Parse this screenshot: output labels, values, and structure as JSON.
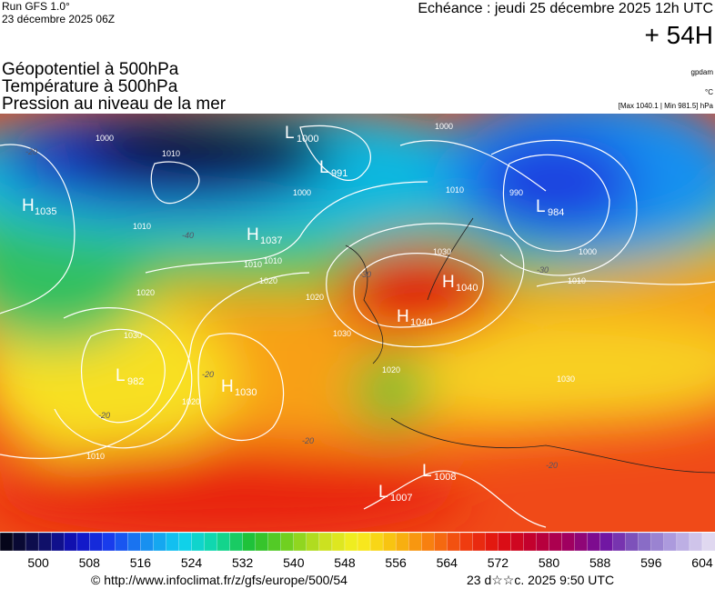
{
  "header": {
    "run": "Run GFS 1.0°",
    "run_date": "23 décembre 2025 06Z",
    "valid": "Echéance : jeudi 25 décembre 2025 12h UTC",
    "lead": "+ 54H",
    "fields": [
      "Géopotentiel à 500hPa",
      "Température à 500hPa",
      "Pression au niveau de la mer"
    ],
    "units": [
      "gpdam",
      "°C",
      "[Max 1040.1 | Min 981.5] hPa"
    ]
  },
  "centers": [
    {
      "letter": "H",
      "value": 1035
    },
    {
      "letter": "L",
      "value": 1000
    },
    {
      "letter": "L",
      "value": 991
    },
    {
      "letter": "H",
      "value": 1037
    },
    {
      "letter": "L",
      "value": 984
    },
    {
      "letter": "H",
      "value": 1040
    },
    {
      "letter": "H",
      "value": 1040
    },
    {
      "letter": "L",
      "value": 982
    },
    {
      "letter": "H",
      "value": 1030
    },
    {
      "letter": "L",
      "value": 1008
    },
    {
      "letter": "L",
      "value": 1007
    }
  ],
  "isobar_labels": [
    "1010",
    "1010",
    "1000",
    "1010",
    "1010",
    "1020",
    "1020",
    "1030",
    "1030",
    "1030",
    "1020",
    "1020",
    "1010",
    "1000",
    "1000",
    "990",
    "1010",
    "1000",
    "1010",
    "1020",
    "1030"
  ],
  "temperature_labels": [
    "-20",
    "-40",
    "-30",
    "-30",
    "-20",
    "-20",
    "-20",
    "-20"
  ],
  "legend": {
    "lim": [
      494,
      606
    ],
    "ticks": [
      500,
      508,
      516,
      524,
      532,
      540,
      548,
      556,
      564,
      572,
      580,
      588,
      596,
      604
    ],
    "step": 2,
    "colors": [
      "#05051a",
      "#101060",
      "#1010c0",
      "#1a40f0",
      "#1890f0",
      "#10d0f0",
      "#10d8a0",
      "#20c030",
      "#70d020",
      "#c8e020",
      "#f8f020",
      "#f8c010",
      "#f88010",
      "#f04010",
      "#e01010",
      "#c00030",
      "#a00060",
      "#7010a0",
      "#8060c0",
      "#b0a0e0",
      "#e0d8f0"
    ]
  },
  "footer": {
    "source": "© http://www.infoclimat.fr/z/gfs/europe/500/54",
    "stamp": "23 d☆☆c. 2025  9:50 UTC"
  }
}
